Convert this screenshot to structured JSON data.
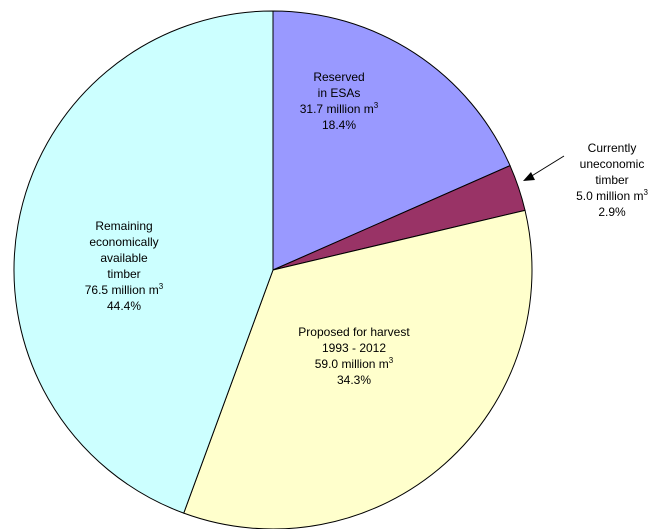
{
  "chart_data": {
    "type": "pie",
    "title": "",
    "unit": "million m",
    "unit_superscript": "3",
    "slices": [
      {
        "name_lines": [
          "Reserved",
          "in ESAs"
        ],
        "volume": 31.7,
        "volume_label": "31.7 million m",
        "percent": 18.4,
        "percent_label": "18.4%",
        "color": "#9999ff"
      },
      {
        "name_lines": [
          "Currently",
          "uneconomic",
          "timber"
        ],
        "volume": 5.0,
        "volume_label": "5.0 million m",
        "percent": 2.9,
        "percent_label": "2.9%",
        "color": "#993366",
        "label_outside": true
      },
      {
        "name_lines": [
          "Proposed for harvest",
          "1993 - 2012"
        ],
        "volume": 59.0,
        "volume_label": "59.0 million m",
        "percent": 34.3,
        "percent_label": "34.3%",
        "color": "#ffffcc"
      },
      {
        "name_lines": [
          "Remaining",
          "economically",
          "available",
          "timber"
        ],
        "volume": 76.5,
        "volume_label": "76.5 million m",
        "percent": 44.4,
        "percent_label": "44.4%",
        "color": "#ccffff"
      }
    ],
    "start_angle": "12 o'clock",
    "direction": "clockwise",
    "legend": "none"
  }
}
